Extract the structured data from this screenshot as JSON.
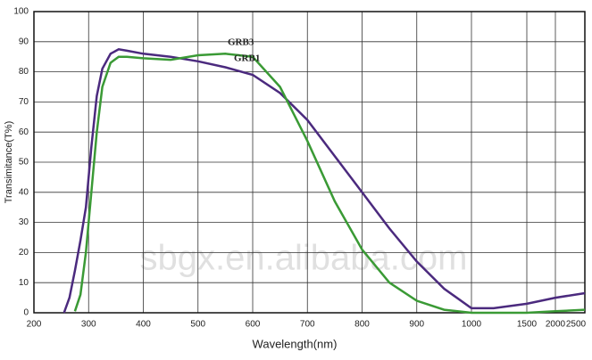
{
  "chart_data": {
    "type": "line",
    "y_label": "Transimitance(T%)",
    "x_label": "Wavelength(nm)",
    "watermark": "sbgx.en.alibaba.com",
    "x": [
      255,
      265,
      275,
      285,
      295,
      305,
      315,
      325,
      340,
      355,
      370,
      400,
      450,
      500,
      550,
      600,
      650,
      700,
      750,
      800,
      850,
      900,
      950,
      1000,
      1200,
      1500,
      2000,
      2500
    ],
    "series": [
      {
        "name": "GRB1",
        "color": "#4b2a7e",
        "values": [
          0,
          5,
          14,
          24,
          35,
          55,
          72,
          81,
          86,
          87.5,
          87,
          86,
          85,
          83.5,
          81.5,
          79,
          73,
          64,
          52,
          40,
          28,
          17,
          8,
          1.5,
          1.5,
          3,
          5,
          6.5
        ]
      },
      {
        "name": "GRB3",
        "color": "#3a9a35",
        "values": [
          null,
          null,
          0.5,
          6,
          20,
          40,
          60,
          75,
          83,
          85,
          85,
          84.5,
          84,
          85.5,
          86,
          85,
          75,
          57,
          37,
          21,
          10,
          4,
          1,
          0,
          0,
          0,
          0.5,
          1
        ]
      }
    ],
    "xlim": [
      200,
      2500
    ],
    "xticks": [
      200,
      300,
      400,
      500,
      600,
      700,
      800,
      900,
      1000,
      1500,
      2000,
      2500
    ],
    "ylim": [
      0,
      100
    ],
    "yticks": [
      0,
      10,
      20,
      30,
      40,
      50,
      60,
      70,
      80,
      90,
      100
    ],
    "grid": true
  }
}
